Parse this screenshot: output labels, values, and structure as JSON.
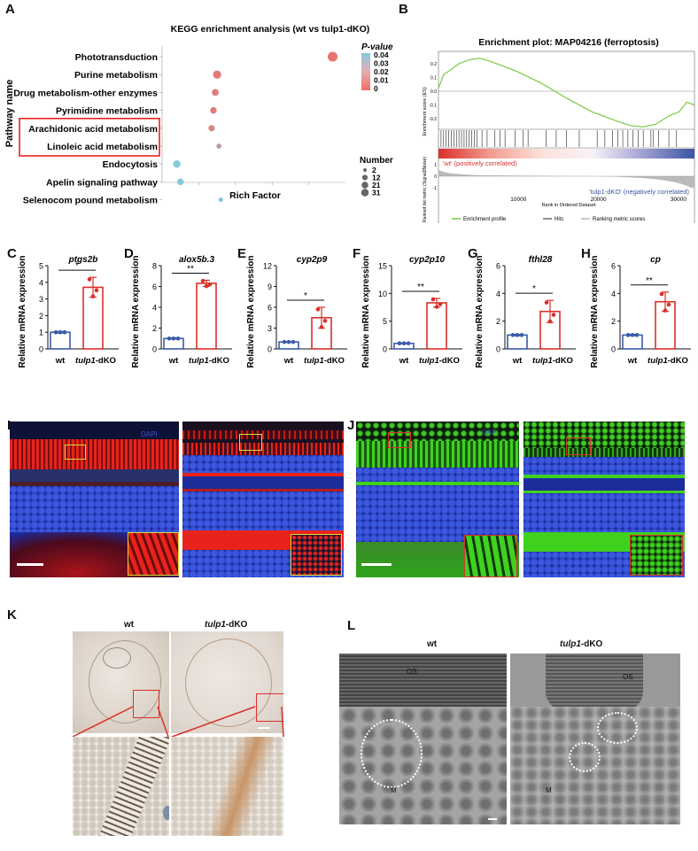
{
  "panels": {
    "A": "A",
    "B": "B",
    "C": "C",
    "D": "D",
    "E": "E",
    "F": "F",
    "G": "G",
    "H": "H",
    "I": "I",
    "J": "J",
    "K": "K",
    "L": "L"
  },
  "kegg": {
    "title": "KEGG enrichment analysis (wt vs tulp1-dKO)",
    "ylabel": "Pathway name",
    "xlabel": "Rich Factor",
    "pvalue_title": "P-value",
    "pvalue_ticks": [
      "0.04",
      "0.03",
      "0.02",
      "0.01",
      "0"
    ],
    "number_title": "Number",
    "number_ticks": [
      "2",
      "12",
      "21",
      "31"
    ],
    "pathways": [
      {
        "name": "Phototransduction",
        "rich": 0.93,
        "pvalue": 0.004,
        "number": 21,
        "boxed": false
      },
      {
        "name": "Purine metabolism",
        "rich": 0.3,
        "pvalue": 0.006,
        "number": 13,
        "boxed": false
      },
      {
        "name": "Drug metabolism-other enzymes",
        "rich": 0.29,
        "pvalue": 0.007,
        "number": 8,
        "boxed": false
      },
      {
        "name": "Pyrimidine metabolism",
        "rich": 0.28,
        "pvalue": 0.008,
        "number": 7,
        "boxed": false
      },
      {
        "name": "Arachidonic acid metabolism",
        "rich": 0.27,
        "pvalue": 0.01,
        "number": 6,
        "boxed": true
      },
      {
        "name": "Linoleic acid metabolism",
        "rich": 0.31,
        "pvalue": 0.02,
        "number": 3,
        "boxed": true
      },
      {
        "name": "Endocytosis",
        "rich": 0.08,
        "pvalue": 0.04,
        "number": 10,
        "boxed": false
      },
      {
        "name": "Apelin signaling pathway",
        "rich": 0.1,
        "pvalue": 0.04,
        "number": 7,
        "boxed": false
      },
      {
        "name": "Selenocom pound metabolism",
        "rich": 0.32,
        "pvalue": 0.04,
        "number": 2,
        "boxed": false
      }
    ]
  },
  "gsea": {
    "title": "Enrichment plot: MAP04216 (ferroptosis)",
    "es_label": "Enrichment score (ES)",
    "es_ticks": [
      "0.2",
      "0.1",
      "0.0",
      "-0.1",
      "-0.2"
    ],
    "metric_label": "Ranked list metric (Signal2Noise)",
    "metric_ticks": [
      "1",
      "0",
      "-1"
    ],
    "x_label": "Rank in Ordered Dataset",
    "x_ticks": [
      "10000",
      "20000",
      "30000"
    ],
    "pos_label": "'wt' (positively correlated)",
    "neg_label": "'tulp1-dKO' (negatively correlated)",
    "legend": [
      "Enrichment profile",
      "Hits",
      "Ranking metric scores"
    ],
    "colors": {
      "profile": "#7ac943",
      "pos": "#d9302b",
      "neg": "#3a53a4"
    }
  },
  "bar_common": {
    "ylabel": "Relative mRNA expression",
    "wt": "wt",
    "ko": "tulp1-dKO",
    "wt_color": "#3b5ba9",
    "ko_color": "#d9302b"
  },
  "chart_data": [
    {
      "type": "bar",
      "title": "ptgs2b",
      "categories": [
        "wt",
        "tulp1-dKO"
      ],
      "values": [
        1.0,
        3.7
      ],
      "errors": [
        0.05,
        0.6
      ],
      "ylim": [
        0,
        5
      ],
      "yticks": [
        "0",
        "1",
        "2",
        "3",
        "4",
        "5"
      ],
      "sig": "*"
    },
    {
      "type": "bar",
      "title": "alox5b.3",
      "categories": [
        "wt",
        "tulp1-dKO"
      ],
      "values": [
        1.0,
        6.3
      ],
      "errors": [
        0.05,
        0.3
      ],
      "ylim": [
        0,
        8
      ],
      "yticks": [
        "0",
        "2",
        "4",
        "6",
        "8"
      ],
      "sig": "**"
    },
    {
      "type": "bar",
      "title": "cyp2p9",
      "categories": [
        "wt",
        "tulp1-dKO"
      ],
      "values": [
        1.0,
        4.5
      ],
      "errors": [
        0.05,
        1.5
      ],
      "ylim": [
        0,
        12
      ],
      "yticks": [
        "0",
        "3",
        "6",
        "9",
        "12"
      ],
      "sig": "*"
    },
    {
      "type": "bar",
      "title": "cyp2p10",
      "categories": [
        "wt",
        "tulp1-dKO"
      ],
      "values": [
        1.0,
        8.3
      ],
      "errors": [
        0.05,
        0.8
      ],
      "ylim": [
        0,
        15
      ],
      "yticks": [
        "0",
        "5",
        "10",
        "15"
      ],
      "sig": "**"
    },
    {
      "type": "bar",
      "title": "fthl28",
      "categories": [
        "wt",
        "tulp1-dKO"
      ],
      "values": [
        1.0,
        2.7
      ],
      "errors": [
        0.05,
        0.8
      ],
      "ylim": [
        0,
        6
      ],
      "yticks": [
        "0",
        "2",
        "4",
        "6"
      ],
      "sig": "*"
    },
    {
      "type": "bar",
      "title": "cp",
      "categories": [
        "wt",
        "tulp1-dKO"
      ],
      "values": [
        1.0,
        3.4
      ],
      "errors": [
        0.05,
        0.7
      ],
      "ylim": [
        0,
        6
      ],
      "yticks": [
        "0",
        "2",
        "4",
        "6"
      ],
      "sig": "**"
    }
  ],
  "images": {
    "wt": "wt",
    "ko": "tulp1-dKO",
    "dapi": "DAPI",
    "os": "OS",
    "m": "M",
    "colors": {
      "red": "#e8231c",
      "blue": "#2c3fd1",
      "green": "#3fd11e",
      "inset_red": "#d9302b",
      "inset_yellow": "#d4e03a"
    }
  }
}
